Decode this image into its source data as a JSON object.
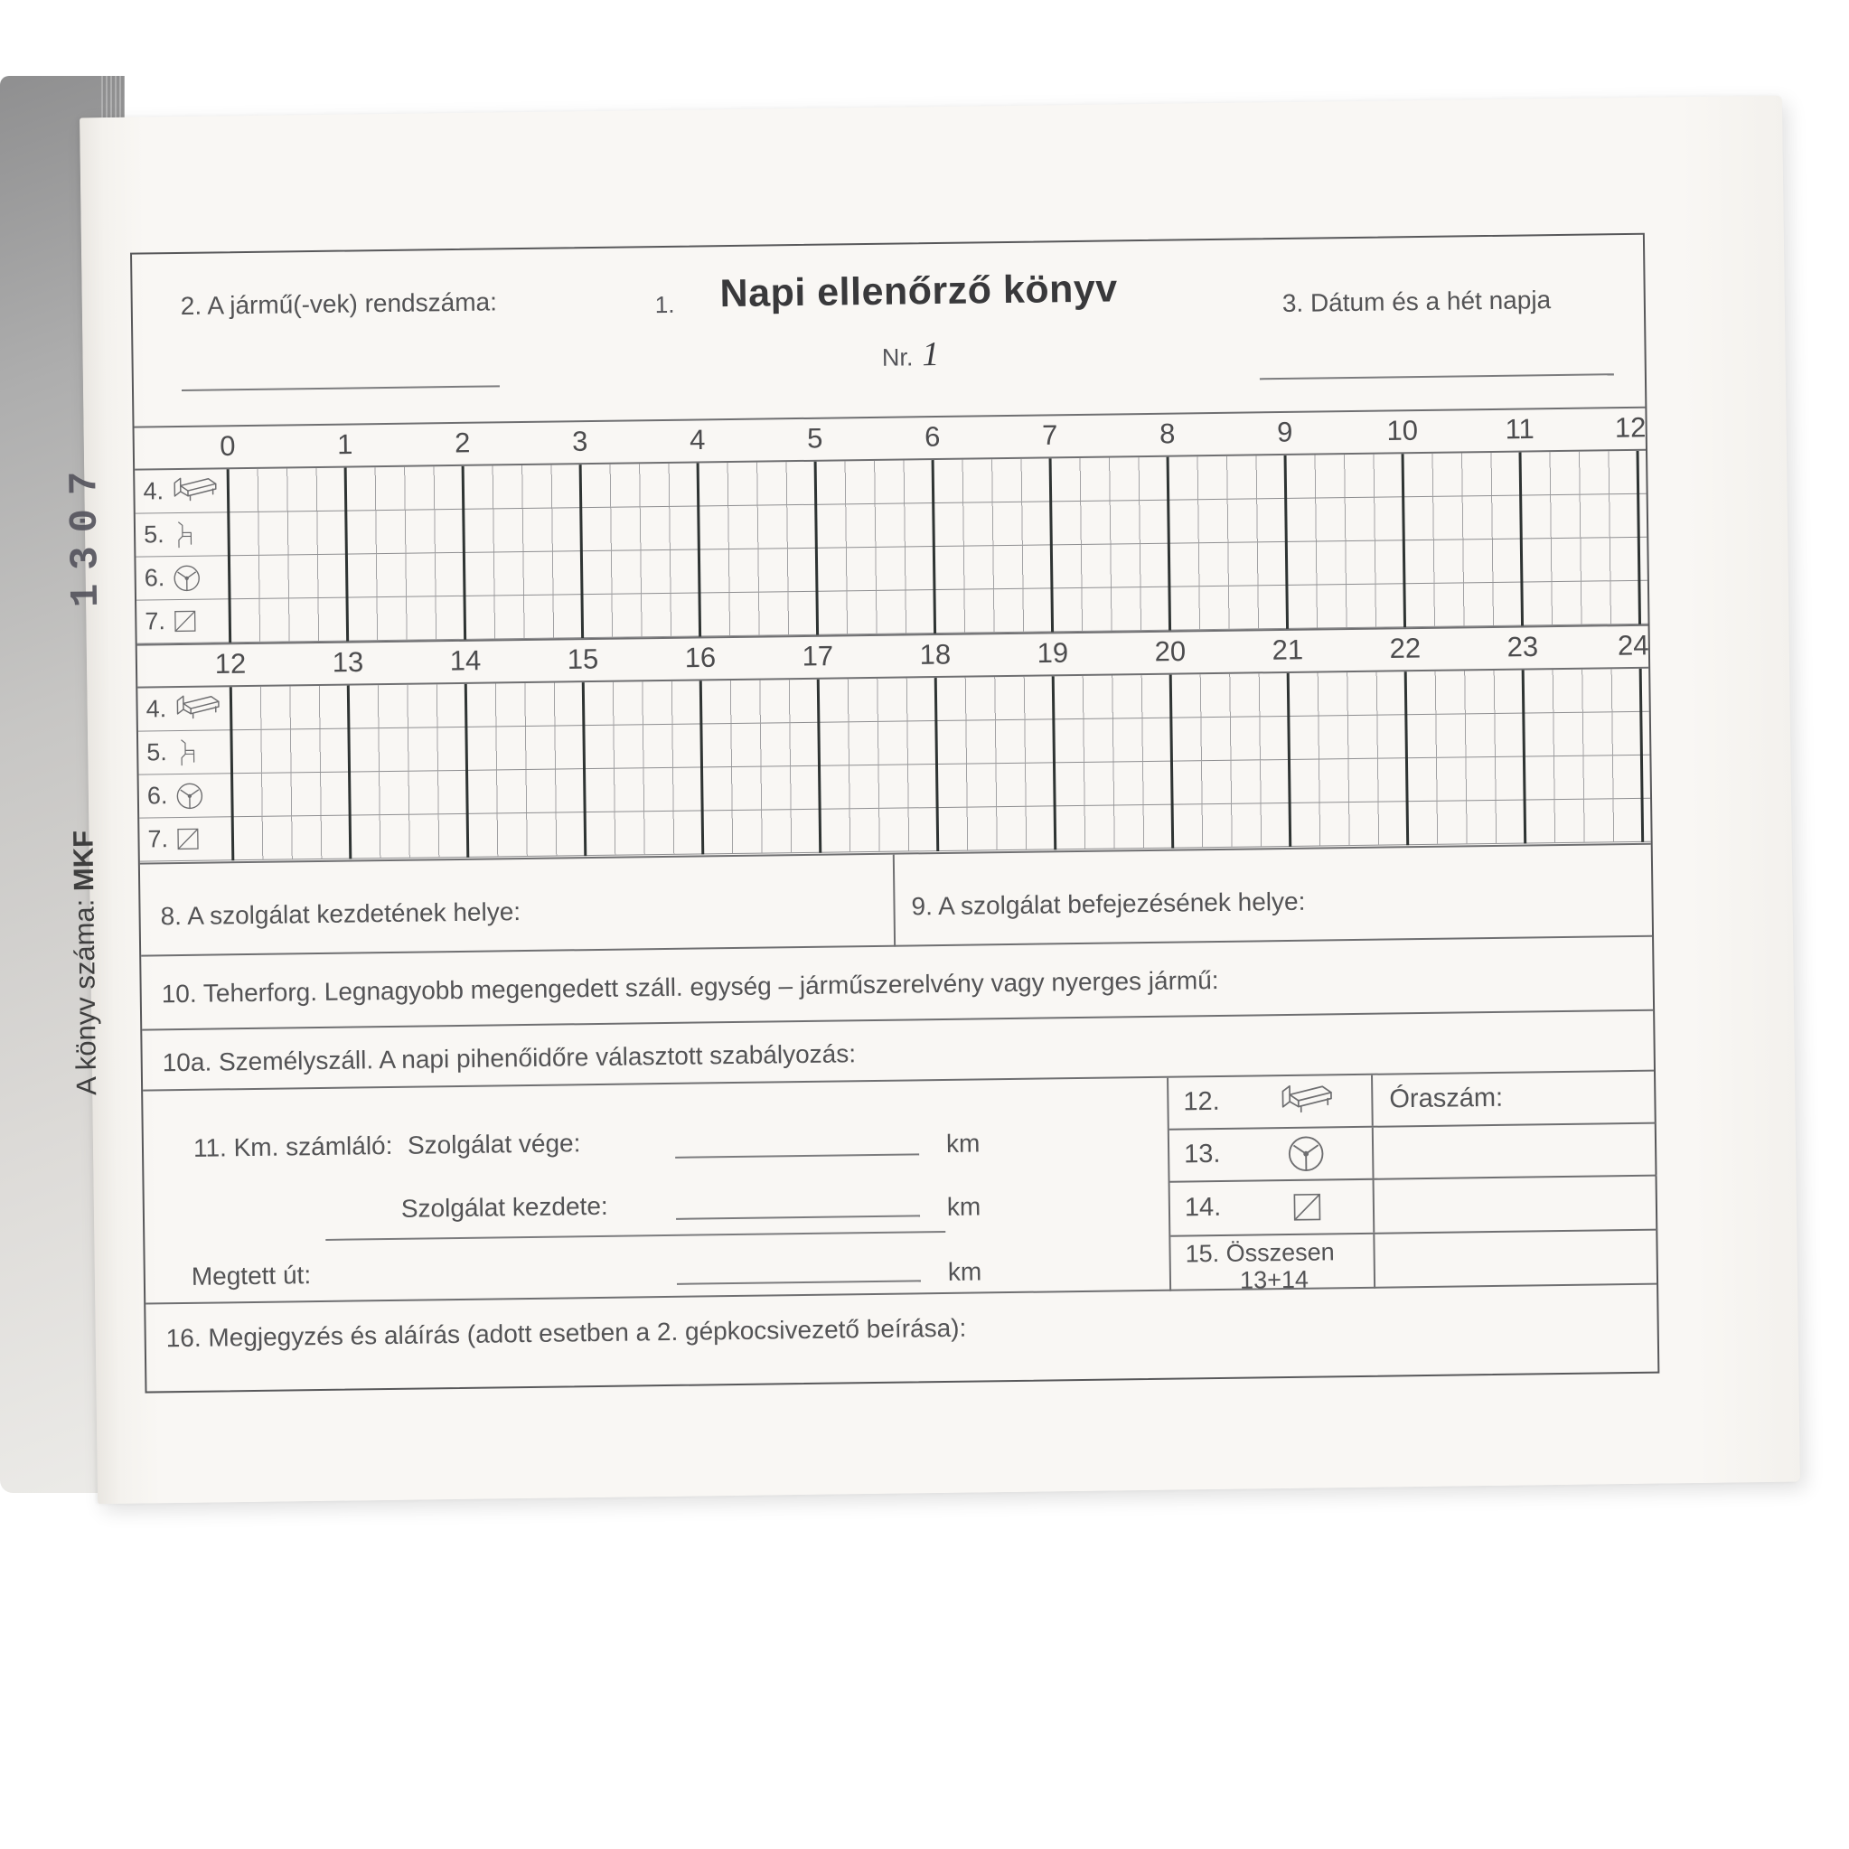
{
  "book": {
    "stamp_number": "1307",
    "book_number_label": "A könyv száma:",
    "book_number_value": "MKF"
  },
  "form": {
    "field2_label": "2. A jármű(-vek) rendszáma:",
    "title_prefix": "1.",
    "title": "Napi ellenőrző könyv",
    "field3_label": "3. Dátum és a hét napja",
    "nr_label": "Nr.",
    "nr_value": "1",
    "grid": {
      "top_hours": [
        "0",
        "1",
        "2",
        "3",
        "4",
        "5",
        "6",
        "7",
        "8",
        "9",
        "10",
        "11",
        "12"
      ],
      "bottom_hours": [
        "12",
        "13",
        "14",
        "15",
        "16",
        "17",
        "18",
        "19",
        "20",
        "21",
        "22",
        "23",
        "24"
      ],
      "rows": [
        {
          "num": "4.",
          "icon": "bed-icon"
        },
        {
          "num": "5.",
          "icon": "chair-icon"
        },
        {
          "num": "6.",
          "icon": "steering-wheel-icon"
        },
        {
          "num": "7.",
          "icon": "other-work-icon"
        }
      ]
    },
    "s8_label": "8. A szolgálat kezdetének helye:",
    "s9_label": "9. A szolgálat befejezésének helye:",
    "s10_label": "10. Teherforg. Legnagyobb megengedett száll. egység – járműszerelvény vagy nyerges jármű:",
    "s10a_label": "10a. Személyszáll. A napi pihenőidőre választott szabályozás:",
    "s11_label": "11. Km. számláló:",
    "service_end_label": "Szolgálat vége:",
    "service_start_label": "Szolgálat kezdete:",
    "distance_label": "Megtett út:",
    "km_unit": "km",
    "hours_table": {
      "value_header": "Óraszám:",
      "rows": [
        {
          "num": "12.",
          "icon": "bed-icon"
        },
        {
          "num": "13.",
          "icon": "steering-wheel-icon"
        },
        {
          "num": "14.",
          "icon": "other-work-icon"
        },
        {
          "num": "15.",
          "text_line1": "Összesen",
          "text_line2": "13+14"
        }
      ]
    },
    "s16_label": "16. Megjegyzés és aláírás (adott esetben a 2. gépkocsivezető beírása):"
  }
}
